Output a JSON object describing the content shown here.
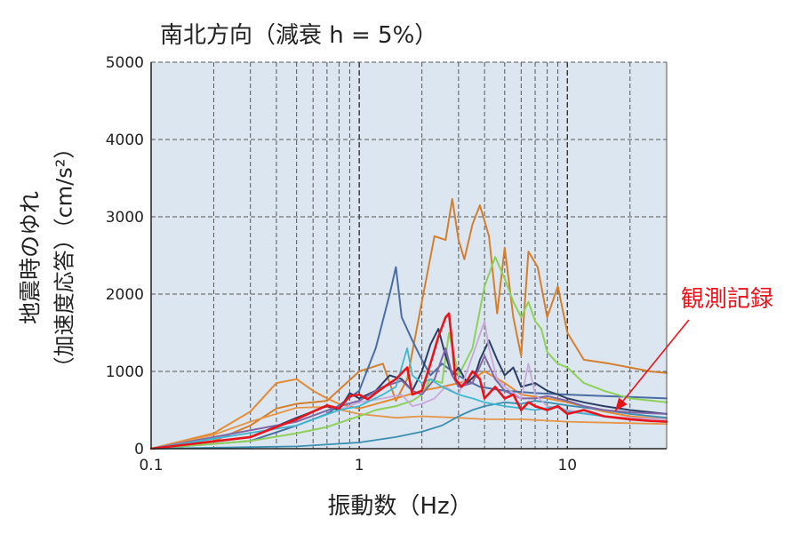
{
  "chart_data": {
    "type": "line",
    "title": "南北方向（減衰 h = 5%）",
    "xlabel": "振動数（Hz）",
    "ylabel": "地震時のゆれ",
    "ylabel_line2": "（加速度応答）（cm/s²）",
    "xscale": "log",
    "xlim": [
      0.1,
      30
    ],
    "ylim": [
      0,
      5000
    ],
    "grid": true,
    "x_ticks": [
      0.1,
      1,
      10
    ],
    "x_tick_labels": [
      "0.1",
      "1",
      "10"
    ],
    "y_ticks": [
      0,
      1000,
      2000,
      3000,
      4000,
      5000
    ],
    "y_tick_labels": [
      "0",
      "1000",
      "2000",
      "3000",
      "4000",
      "5000"
    ],
    "annotation": {
      "text": "観測記録",
      "color": "#e8141c",
      "points_to": {
        "x": 16,
        "y": 400
      }
    },
    "series": [
      {
        "color": "#d37f2e",
        "width": 2,
        "points": [
          [
            0.1,
            0
          ],
          [
            0.2,
            100
          ],
          [
            0.3,
            300
          ],
          [
            0.4,
            520
          ],
          [
            0.5,
            580
          ],
          [
            0.7,
            620
          ],
          [
            1.0,
            1000
          ],
          [
            1.3,
            1100
          ],
          [
            1.5,
            620
          ],
          [
            1.7,
            900
          ],
          [
            2.0,
            1900
          ],
          [
            2.3,
            2750
          ],
          [
            2.6,
            2700
          ],
          [
            2.8,
            3230
          ],
          [
            3.0,
            2700
          ],
          [
            3.2,
            2450
          ],
          [
            3.5,
            2900
          ],
          [
            3.8,
            3150
          ],
          [
            4.2,
            2750
          ],
          [
            4.6,
            1750
          ],
          [
            5.0,
            2600
          ],
          [
            5.5,
            1700
          ],
          [
            6.0,
            1200
          ],
          [
            6.5,
            2550
          ],
          [
            7.2,
            2350
          ],
          [
            8.0,
            1700
          ],
          [
            9.0,
            2100
          ],
          [
            10,
            1500
          ],
          [
            12,
            1150
          ],
          [
            16,
            1100
          ],
          [
            20,
            1050
          ],
          [
            25,
            1000
          ],
          [
            30,
            980
          ]
        ]
      },
      {
        "color": "#e38a33",
        "width": 2,
        "points": [
          [
            0.1,
            0
          ],
          [
            0.2,
            200
          ],
          [
            0.3,
            480
          ],
          [
            0.4,
            850
          ],
          [
            0.5,
            900
          ],
          [
            0.6,
            750
          ],
          [
            0.7,
            650
          ],
          [
            0.8,
            580
          ],
          [
            1.0,
            520
          ],
          [
            1.5,
            650
          ],
          [
            2.0,
            750
          ],
          [
            2.5,
            800
          ],
          [
            3.0,
            850
          ],
          [
            3.5,
            900
          ],
          [
            4.0,
            1000
          ],
          [
            5.0,
            850
          ],
          [
            6.0,
            700
          ],
          [
            8.0,
            650
          ],
          [
            10,
            600
          ],
          [
            15,
            480
          ],
          [
            20,
            420
          ],
          [
            30,
            380
          ]
        ]
      },
      {
        "color": "#e59547",
        "width": 1.8,
        "points": [
          [
            0.1,
            0
          ],
          [
            0.2,
            180
          ],
          [
            0.3,
            350
          ],
          [
            0.5,
            530
          ],
          [
            0.7,
            540
          ],
          [
            1.0,
            450
          ],
          [
            1.5,
            400
          ],
          [
            2.0,
            420
          ],
          [
            3.0,
            400
          ],
          [
            4.0,
            380
          ],
          [
            6.0,
            380
          ],
          [
            10,
            350
          ],
          [
            20,
            330
          ],
          [
            30,
            320
          ]
        ]
      },
      {
        "color": "#4a6ea4",
        "width": 2,
        "points": [
          [
            0.1,
            0
          ],
          [
            0.3,
            100
          ],
          [
            0.5,
            300
          ],
          [
            0.7,
            450
          ],
          [
            1.0,
            750
          ],
          [
            1.2,
            1300
          ],
          [
            1.4,
            2000
          ],
          [
            1.5,
            2350
          ],
          [
            1.6,
            1700
          ],
          [
            1.8,
            1400
          ],
          [
            2.0,
            1150
          ],
          [
            2.2,
            950
          ],
          [
            2.5,
            1100
          ],
          [
            2.8,
            1000
          ],
          [
            3.2,
            900
          ],
          [
            3.8,
            800
          ],
          [
            5.0,
            750
          ],
          [
            7.0,
            720
          ],
          [
            10,
            700
          ],
          [
            15,
            680
          ],
          [
            20,
            670
          ],
          [
            30,
            650
          ]
        ]
      },
      {
        "color": "#8dd05a",
        "width": 2,
        "points": [
          [
            0.1,
            0
          ],
          [
            0.3,
            100
          ],
          [
            0.5,
            200
          ],
          [
            0.7,
            280
          ],
          [
            0.9,
            380
          ],
          [
            1.0,
            420
          ],
          [
            1.2,
            500
          ],
          [
            1.5,
            550
          ],
          [
            1.8,
            620
          ],
          [
            2.0,
            700
          ],
          [
            2.2,
            900
          ],
          [
            2.5,
            850
          ],
          [
            2.7,
            1500
          ],
          [
            3.0,
            950
          ],
          [
            3.5,
            1300
          ],
          [
            4.0,
            2100
          ],
          [
            4.5,
            2480
          ],
          [
            5.0,
            2200
          ],
          [
            5.5,
            1900
          ],
          [
            6.0,
            1700
          ],
          [
            6.5,
            1900
          ],
          [
            7.0,
            1650
          ],
          [
            7.5,
            1550
          ],
          [
            8.0,
            1250
          ],
          [
            9.0,
            1100
          ],
          [
            10,
            1050
          ],
          [
            12,
            850
          ],
          [
            15,
            750
          ],
          [
            20,
            650
          ],
          [
            30,
            600
          ]
        ]
      },
      {
        "color": "#3a8fb0",
        "width": 1.8,
        "points": [
          [
            0.1,
            0
          ],
          [
            0.5,
            30
          ],
          [
            1.0,
            80
          ],
          [
            1.5,
            150
          ],
          [
            2.0,
            220
          ],
          [
            2.5,
            300
          ],
          [
            3.0,
            420
          ],
          [
            3.5,
            500
          ],
          [
            4.0,
            550
          ],
          [
            5.0,
            600
          ],
          [
            6.0,
            580
          ],
          [
            7.0,
            620
          ],
          [
            8.0,
            600
          ],
          [
            10,
            560
          ],
          [
            15,
            500
          ],
          [
            20,
            450
          ],
          [
            30,
            400
          ]
        ]
      },
      {
        "color": "#2c3d63",
        "width": 2,
        "points": [
          [
            0.1,
            0
          ],
          [
            0.3,
            150
          ],
          [
            0.5,
            400
          ],
          [
            0.7,
            550
          ],
          [
            0.8,
            500
          ],
          [
            0.9,
            720
          ],
          [
            1.0,
            650
          ],
          [
            1.2,
            750
          ],
          [
            1.4,
            950
          ],
          [
            1.6,
            900
          ],
          [
            1.8,
            750
          ],
          [
            2.0,
            1000
          ],
          [
            2.2,
            1350
          ],
          [
            2.4,
            1550
          ],
          [
            2.6,
            1200
          ],
          [
            2.8,
            950
          ],
          [
            3.0,
            1050
          ],
          [
            3.3,
            850
          ],
          [
            3.6,
            950
          ],
          [
            3.8,
            1150
          ],
          [
            4.2,
            1400
          ],
          [
            4.6,
            1150
          ],
          [
            5.0,
            950
          ],
          [
            5.5,
            1050
          ],
          [
            6.0,
            800
          ],
          [
            7.0,
            850
          ],
          [
            8.0,
            750
          ],
          [
            9.0,
            700
          ],
          [
            10,
            650
          ],
          [
            12,
            600
          ],
          [
            15,
            550
          ],
          [
            20,
            500
          ],
          [
            30,
            450
          ]
        ]
      },
      {
        "color": "#8066a6",
        "width": 2,
        "points": [
          [
            0.1,
            0
          ],
          [
            0.5,
            350
          ],
          [
            0.8,
            550
          ],
          [
            1.0,
            620
          ],
          [
            1.3,
            800
          ],
          [
            1.6,
            880
          ],
          [
            1.8,
            750
          ],
          [
            2.0,
            700
          ],
          [
            2.3,
            900
          ],
          [
            2.6,
            1300
          ],
          [
            2.8,
            950
          ],
          [
            3.0,
            800
          ],
          [
            3.5,
            850
          ],
          [
            4.0,
            1200
          ],
          [
            4.5,
            900
          ],
          [
            5.0,
            750
          ],
          [
            6.0,
            650
          ],
          [
            7.0,
            650
          ],
          [
            8.0,
            680
          ],
          [
            10,
            620
          ],
          [
            12,
            550
          ],
          [
            15,
            500
          ],
          [
            20,
            470
          ],
          [
            30,
            450
          ]
        ]
      },
      {
        "color": "#c8a8d8",
        "width": 1.8,
        "points": [
          [
            0.1,
            0
          ],
          [
            0.5,
            300
          ],
          [
            0.8,
            500
          ],
          [
            1.0,
            600
          ],
          [
            1.3,
            650
          ],
          [
            1.6,
            700
          ],
          [
            1.8,
            550
          ],
          [
            2.0,
            580
          ],
          [
            2.3,
            650
          ],
          [
            2.6,
            800
          ],
          [
            3.0,
            700
          ],
          [
            3.5,
            1200
          ],
          [
            4.0,
            1650
          ],
          [
            4.2,
            1300
          ],
          [
            4.6,
            900
          ],
          [
            5.0,
            800
          ],
          [
            6.0,
            650
          ],
          [
            6.5,
            1100
          ],
          [
            7.0,
            700
          ],
          [
            8.0,
            550
          ],
          [
            10,
            500
          ],
          [
            15,
            420
          ],
          [
            20,
            400
          ],
          [
            30,
            380
          ]
        ]
      },
      {
        "color": "#3fb8cf",
        "width": 1.8,
        "points": [
          [
            0.1,
            0
          ],
          [
            0.5,
            300
          ],
          [
            0.8,
            500
          ],
          [
            1.0,
            550
          ],
          [
            1.3,
            700
          ],
          [
            1.5,
            800
          ],
          [
            1.7,
            1300
          ],
          [
            1.8,
            950
          ],
          [
            2.0,
            850
          ],
          [
            2.2,
            900
          ],
          [
            2.5,
            800
          ],
          [
            3.0,
            700
          ],
          [
            3.5,
            650
          ],
          [
            4.0,
            600
          ],
          [
            5.0,
            550
          ],
          [
            7.0,
            500
          ],
          [
            9.0,
            550
          ],
          [
            10,
            480
          ],
          [
            15,
            420
          ],
          [
            20,
            380
          ],
          [
            30,
            350
          ]
        ]
      },
      {
        "color": "#e8141c",
        "width": 2.6,
        "points": [
          [
            0.1,
            0
          ],
          [
            0.3,
            150
          ],
          [
            0.5,
            380
          ],
          [
            0.6,
            480
          ],
          [
            0.7,
            560
          ],
          [
            0.8,
            520
          ],
          [
            0.9,
            680
          ],
          [
            1.0,
            700
          ],
          [
            1.1,
            640
          ],
          [
            1.2,
            720
          ],
          [
            1.35,
            820
          ],
          [
            1.5,
            900
          ],
          [
            1.7,
            1050
          ],
          [
            1.8,
            700
          ],
          [
            2.0,
            750
          ],
          [
            2.2,
            1100
          ],
          [
            2.4,
            1450
          ],
          [
            2.6,
            1700
          ],
          [
            2.7,
            1750
          ],
          [
            2.8,
            1350
          ],
          [
            2.9,
            900
          ],
          [
            3.1,
            800
          ],
          [
            3.3,
            880
          ],
          [
            3.5,
            1000
          ],
          [
            3.8,
            900
          ],
          [
            4.0,
            650
          ],
          [
            4.5,
            800
          ],
          [
            5.0,
            650
          ],
          [
            5.5,
            700
          ],
          [
            6.0,
            500
          ],
          [
            6.5,
            600
          ],
          [
            7.0,
            550
          ],
          [
            8.0,
            500
          ],
          [
            9.0,
            550
          ],
          [
            10,
            450
          ],
          [
            12,
            500
          ],
          [
            15,
            420
          ],
          [
            20,
            380
          ],
          [
            25,
            360
          ],
          [
            30,
            350
          ]
        ]
      }
    ]
  }
}
